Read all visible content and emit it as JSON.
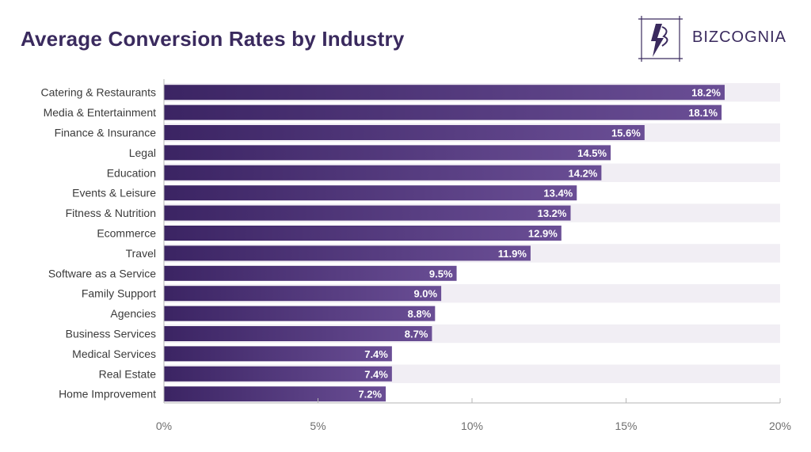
{
  "header": {
    "title": "Average Conversion Rates by Industry"
  },
  "logo": {
    "text": "BIZCOGNIA",
    "icon": "bizcognia-logo-icon"
  },
  "colors": {
    "bar_start": "#3b2463",
    "bar_end": "#6a4e95",
    "track": "#f1eef4",
    "title": "#3a2a5e",
    "axis": "#b5b5b5"
  },
  "chart_data": {
    "type": "bar",
    "orientation": "horizontal",
    "title": "Average Conversion Rates by Industry",
    "categories": [
      "Catering & Restaurants",
      "Media & Entertainment",
      "Finance & Insurance",
      "Legal",
      "Education",
      "Events & Leisure",
      "Fitness & Nutrition",
      "Ecommerce",
      "Travel",
      "Software as a Service",
      "Family Support",
      "Agencies",
      "Business Services",
      "Medical Services",
      "Real Estate",
      "Home Improvement"
    ],
    "values": [
      18.2,
      18.1,
      15.6,
      14.5,
      14.2,
      13.4,
      13.2,
      12.9,
      11.9,
      9.5,
      9.0,
      8.8,
      8.7,
      7.4,
      7.4,
      7.2
    ],
    "value_labels": [
      "18.2%",
      "18.1%",
      "15.6%",
      "14.5%",
      "14.2%",
      "13.4%",
      "13.2%",
      "12.9%",
      "11.9%",
      "9.5%",
      "9.0%",
      "8.8%",
      "8.7%",
      "7.4%",
      "7.4%",
      "7.2%"
    ],
    "xlim": [
      0,
      20
    ],
    "xticks": [
      0,
      5,
      10,
      15,
      20
    ],
    "xtick_labels": [
      "0%",
      "5%",
      "10%",
      "15%",
      "20%"
    ],
    "xlabel": "",
    "ylabel": "",
    "grid": false,
    "legend": "none"
  }
}
